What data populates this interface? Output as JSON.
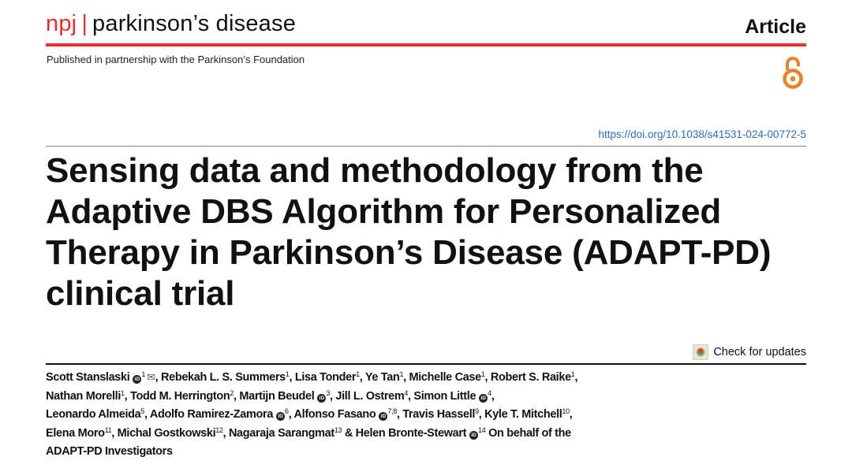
{
  "header": {
    "journal_prefix": "npj",
    "journal_separator": "|",
    "journal_name": "parkinson’s disease",
    "article_type": "Article",
    "partnership": "Published in partnership with the Parkinson’s Foundation",
    "open_access_icon": "open-access-lock-icon",
    "doi": "https://doi.org/10.1038/s41531-024-00772-5",
    "accent_color": "#e8302a",
    "link_color": "#2a6ebb",
    "open_access_color": "#e8822a"
  },
  "title": "Sensing data and methodology from the Adaptive DBS Algorithm for Personalized Therapy in Parkinson’s Disease (ADAPT-PD) clinical trial",
  "check_updates": {
    "label": "Check for updates",
    "icon": "crossmark-icon"
  },
  "authors_lines": [
    [
      {
        "name": "Scott Stanslaski",
        "sup": "1",
        "orcid": true,
        "email": true,
        "sep": ", "
      },
      {
        "name": "Rebekah L. S. Summers",
        "sup": "1",
        "sep": ", "
      },
      {
        "name": "Lisa Tonder",
        "sup": "1",
        "sep": ", "
      },
      {
        "name": "Ye Tan",
        "sup": "1",
        "sep": ", "
      },
      {
        "name": "Michelle Case",
        "sup": "1",
        "sep": ", "
      },
      {
        "name": "Robert S. Raike",
        "sup": "1",
        "sep": ","
      }
    ],
    [
      {
        "name": "Nathan Morelli",
        "sup": "1",
        "sep": ", "
      },
      {
        "name": "Todd M. Herrington",
        "sup": "2",
        "sep": ", "
      },
      {
        "name": "Martijn Beudel",
        "sup": "3",
        "orcid": true,
        "sep": ", "
      },
      {
        "name": "Jill L. Ostrem",
        "sup": "4",
        "sep": ", "
      },
      {
        "name": "Simon Little",
        "sup": "4",
        "orcid": true,
        "sep": ","
      }
    ],
    [
      {
        "name": "Leonardo Almeida",
        "sup": "5",
        "sep": ", "
      },
      {
        "name": "Adolfo Ramirez-Zamora",
        "sup": "6",
        "orcid": true,
        "sep": ", "
      },
      {
        "name": "Alfonso Fasano",
        "sup": "7,8",
        "orcid": true,
        "sep": ", "
      },
      {
        "name": "Travis Hassell",
        "sup": "9",
        "sep": ", "
      },
      {
        "name": "Kyle T. Mitchell",
        "sup": "10",
        "sep": ","
      }
    ],
    [
      {
        "name": "Elena Moro",
        "sup": "11",
        "sep": ", "
      },
      {
        "name": "Michal Gostkowski",
        "sup": "12",
        "sep": ", "
      },
      {
        "name": "Nagaraja Sarangmat",
        "sup": "13",
        "sep": " & "
      },
      {
        "name": "Helen Bronte-Stewart",
        "sup": "14",
        "orcid": true,
        "sep": " On behalf of the"
      }
    ],
    [
      {
        "name": "ADAPT-PD Investigators",
        "sup": "",
        "sep": ""
      }
    ]
  ]
}
